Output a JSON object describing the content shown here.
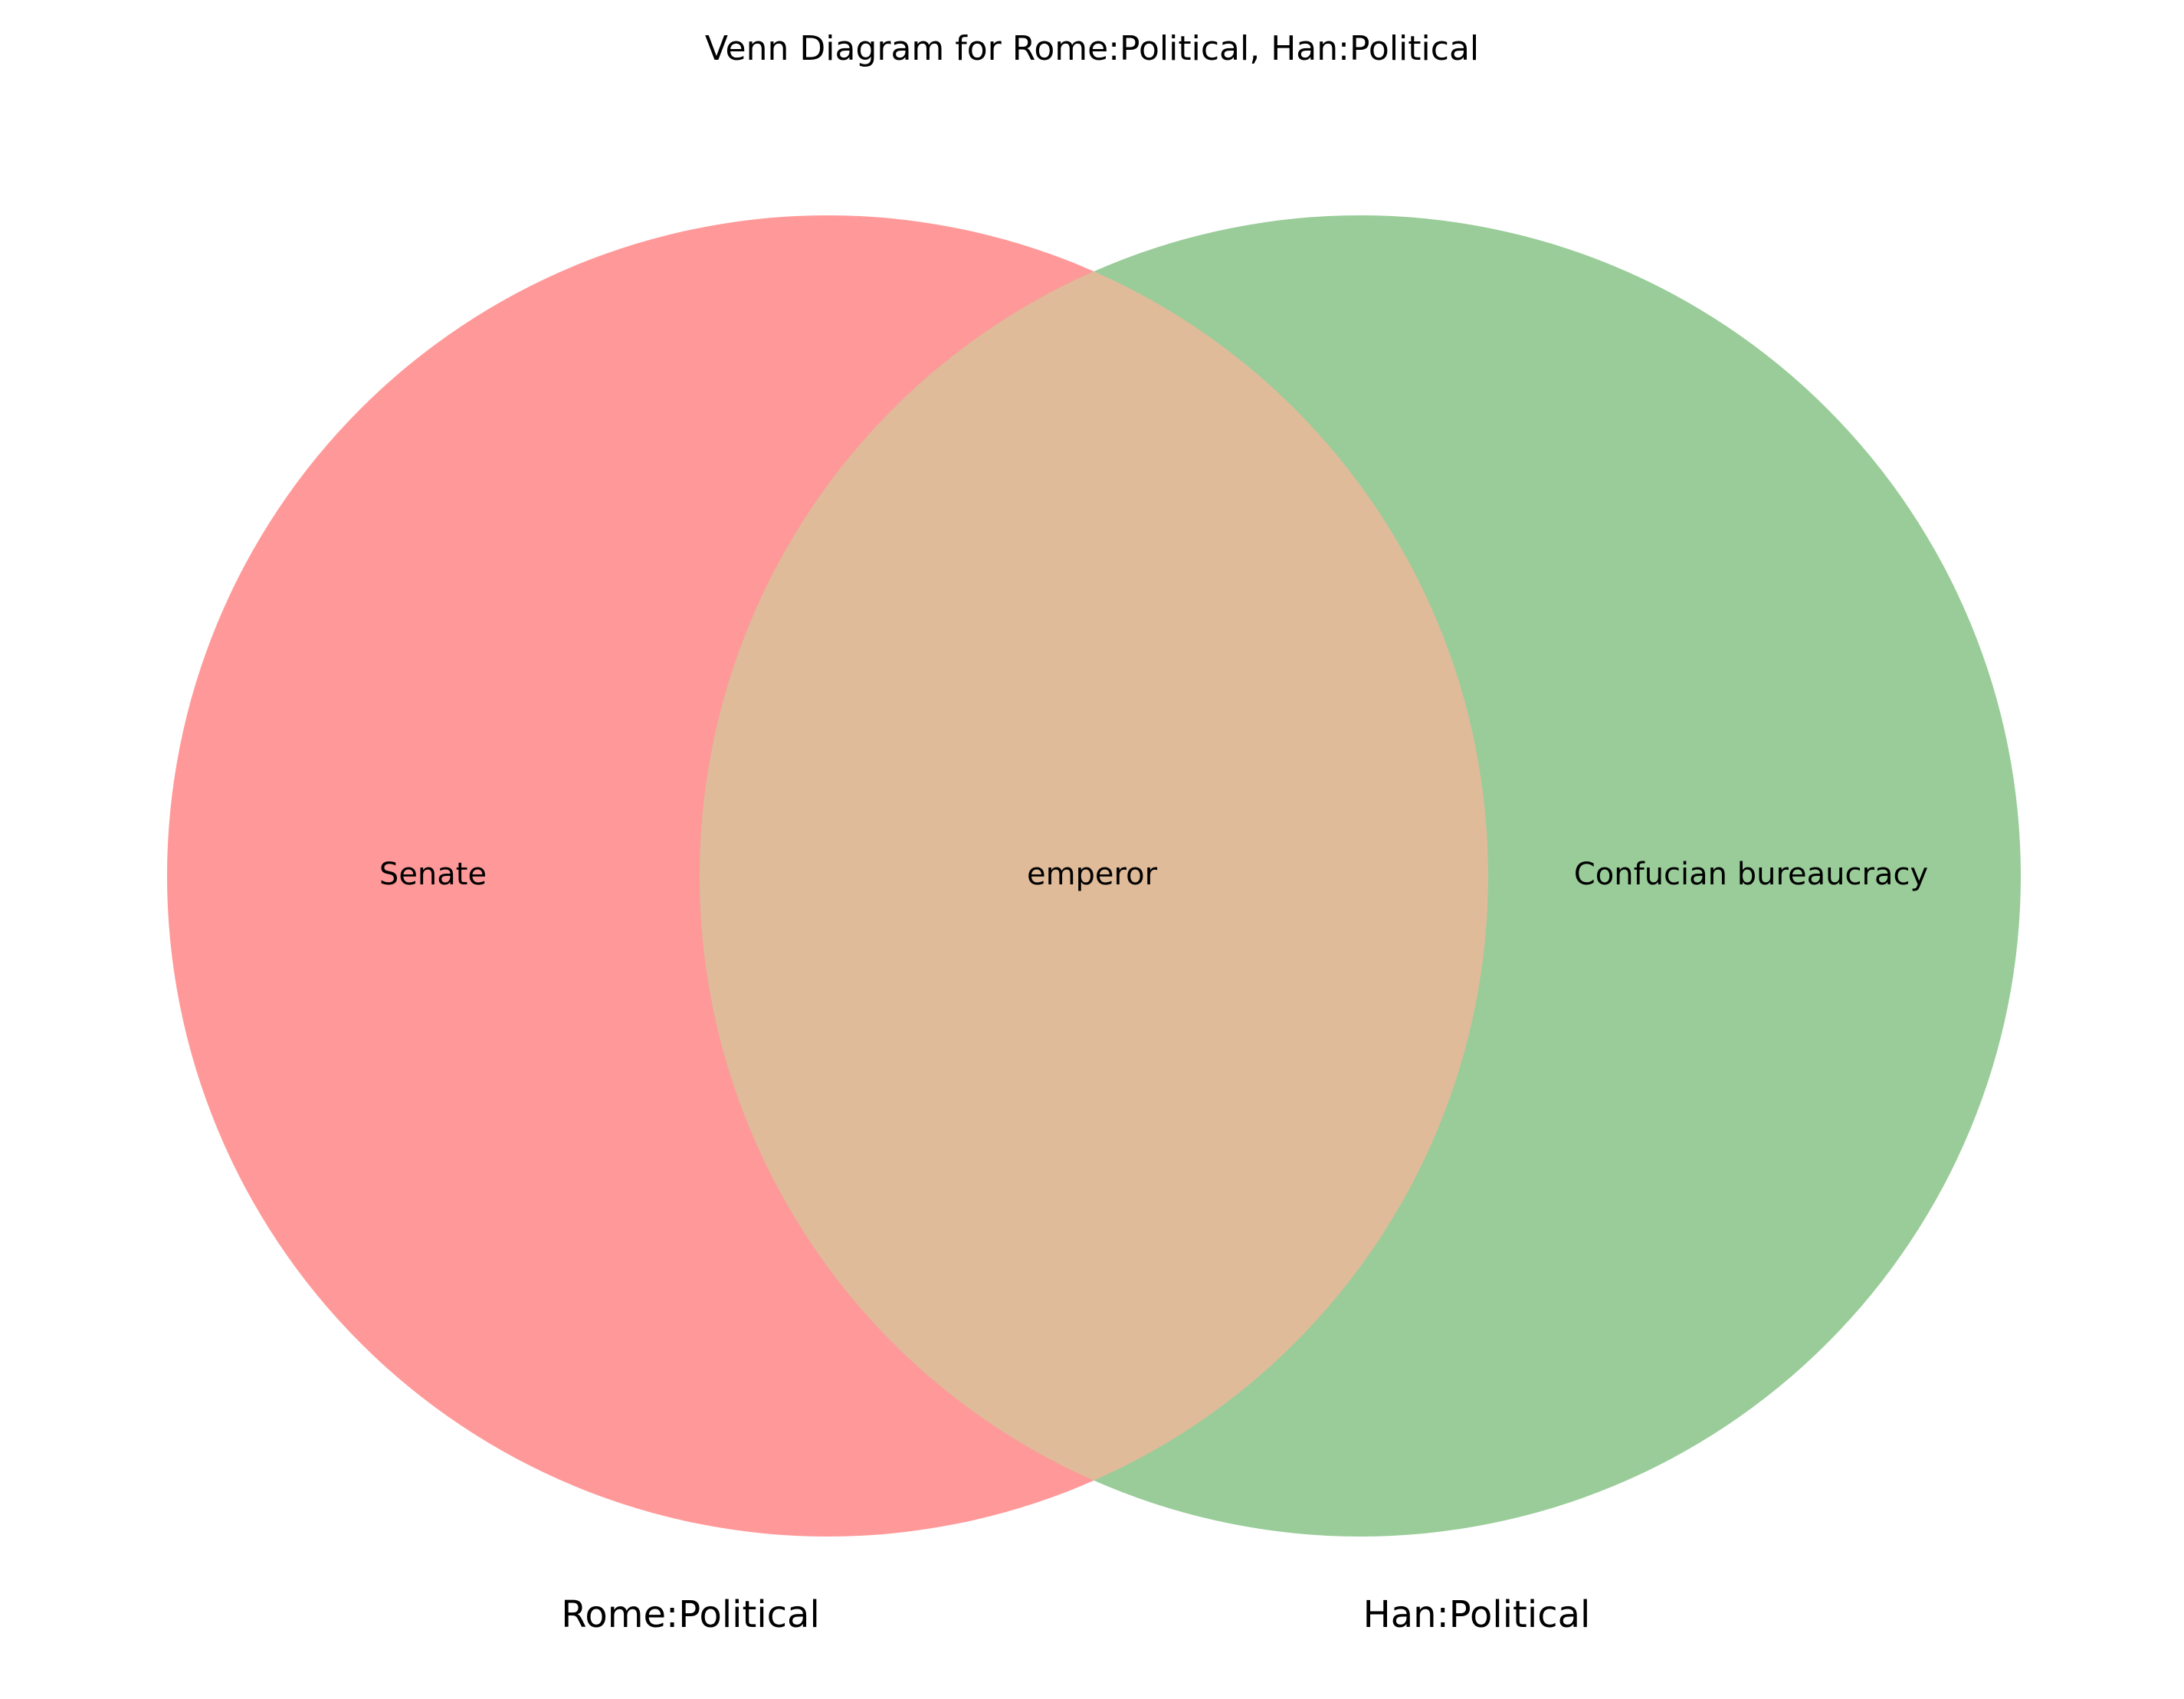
{
  "diagram": {
    "title": "Venn Diagram for Rome:Political, Han:Political",
    "sets": [
      {
        "label": "Rome:Political",
        "color": "#ff9999"
      },
      {
        "label": "Han:Political",
        "color": "#99cc99"
      }
    ],
    "intersection_color": "#e0bb99",
    "regions": {
      "left_only": "Senate",
      "both": "emperor",
      "right_only": "Confucian bureaucracy"
    }
  }
}
